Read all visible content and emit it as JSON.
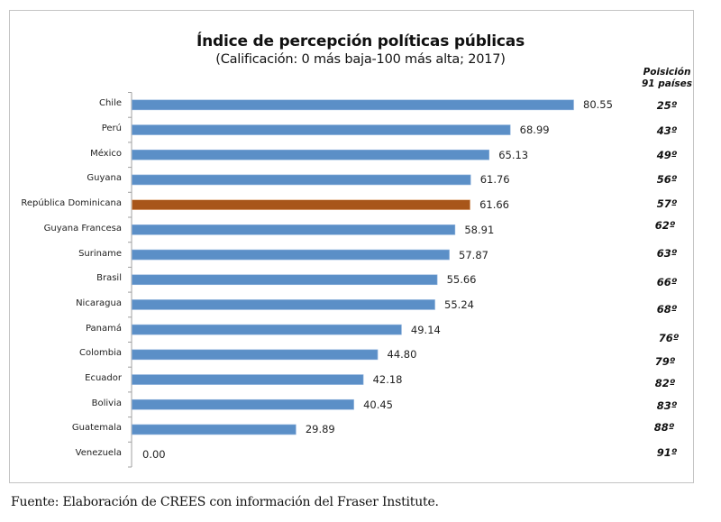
{
  "chart_data": {
    "type": "bar",
    "orientation": "horizontal",
    "title": "Índice de percepción políticas públicas",
    "subtitle": "(Calificación: 0 más baja-100 más alta; 2017)",
    "xlabel": "",
    "ylabel": "",
    "xlim": [
      0,
      100
    ],
    "grid": false,
    "categories": [
      "Chile",
      "Perú",
      "México",
      "Guyana",
      "República Dominicana",
      "Guyana Francesa",
      "Suriname",
      "Brasil",
      "Nicaragua",
      "Panamá",
      "Colombia",
      "Ecuador",
      "Bolivia",
      "Guatemala",
      "Venezuela"
    ],
    "values": [
      80.55,
      68.99,
      65.13,
      61.76,
      61.66,
      58.91,
      57.87,
      55.66,
      55.24,
      49.14,
      44.8,
      42.18,
      40.45,
      29.89,
      0.0
    ],
    "value_labels": [
      "80.55",
      "68.99",
      "65.13",
      "61.76",
      "61.66",
      "58.91",
      "57.87",
      "55.66",
      "55.24",
      "49.14",
      "44.80",
      "42.18",
      "40.45",
      "29.89",
      "0.00"
    ],
    "highlight_index": 4,
    "colors": {
      "default": "#5b8fc7",
      "highlight": "#a8561a"
    },
    "rank_header": [
      "Poisición",
      "91 países"
    ],
    "ranks": [
      "25º",
      "43º",
      "49º",
      "56º",
      "57º",
      "62º",
      "63º",
      "66º",
      "68º",
      "76º",
      "79º",
      "82º",
      "83º",
      "88º",
      "91º"
    ]
  },
  "source": "Fuente: Elaboración de CREES con información del Fraser Institute."
}
